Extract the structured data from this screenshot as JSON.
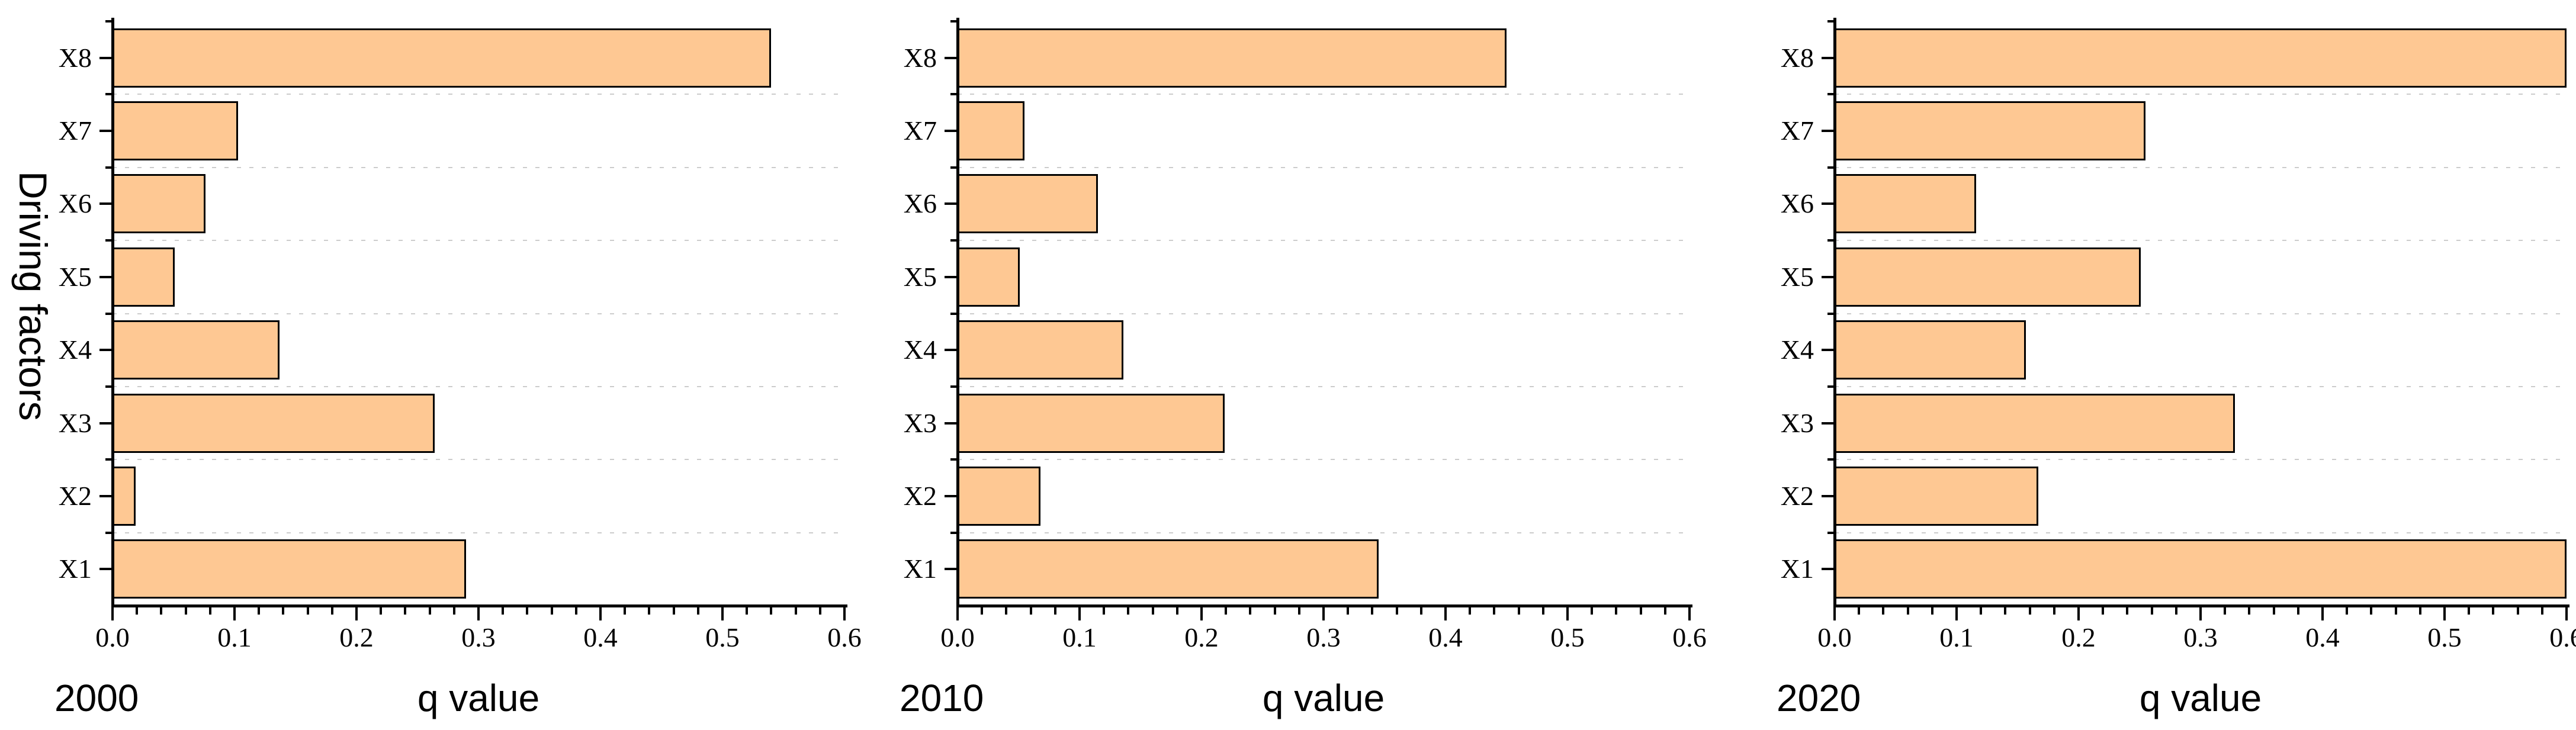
{
  "figure": {
    "ylabel": "Driving factors",
    "background": "#ffffff"
  },
  "style": {
    "bar_fill": "#FEC893",
    "bar_border": "#000000",
    "axis_color": "#000000",
    "grid_color": "#cccccc",
    "text_color": "#000000"
  },
  "chart_data": [
    {
      "type": "bar",
      "orientation": "horizontal",
      "title": "2000",
      "xlabel": "q value",
      "categories": [
        "X8",
        "X7",
        "X6",
        "X5",
        "X4",
        "X3",
        "X2",
        "X1"
      ],
      "values": [
        0.54,
        0.103,
        0.076,
        0.051,
        0.137,
        0.264,
        0.019,
        0.29
      ],
      "xlim": [
        0.0,
        0.6
      ],
      "x_ticks": [
        "0.0",
        "0.1",
        "0.2",
        "0.3",
        "0.4",
        "0.5",
        "0.6"
      ],
      "x_minor_tick_step": 0.02,
      "grid": {
        "horizontal_dotted_lines_between_categories": true
      }
    },
    {
      "type": "bar",
      "orientation": "horizontal",
      "title": "2010",
      "xlabel": "q value",
      "categories": [
        "X8",
        "X7",
        "X6",
        "X5",
        "X4",
        "X3",
        "X2",
        "X1"
      ],
      "values": [
        0.45,
        0.055,
        0.115,
        0.051,
        0.136,
        0.219,
        0.068,
        0.345
      ],
      "xlim": [
        0.0,
        0.6
      ],
      "x_ticks": [
        "0.0",
        "0.1",
        "0.2",
        "0.3",
        "0.4",
        "0.5",
        "0.6"
      ],
      "x_minor_tick_step": 0.02,
      "grid": {
        "horizontal_dotted_lines_between_categories": true
      }
    },
    {
      "type": "bar",
      "orientation": "horizontal",
      "title": "2020",
      "xlabel": "q value",
      "categories": [
        "X8",
        "X7",
        "X6",
        "X5",
        "X4",
        "X3",
        "X2",
        "X1"
      ],
      "values": [
        0.6,
        0.255,
        0.116,
        0.251,
        0.157,
        0.328,
        0.167,
        0.6
      ],
      "xlim": [
        0.0,
        0.6
      ],
      "x_ticks": [
        "0.0",
        "0.1",
        "0.2",
        "0.3",
        "0.4",
        "0.5",
        "0.6"
      ],
      "x_minor_tick_step": 0.02,
      "grid": {
        "horizontal_dotted_lines_between_categories": true
      }
    }
  ]
}
